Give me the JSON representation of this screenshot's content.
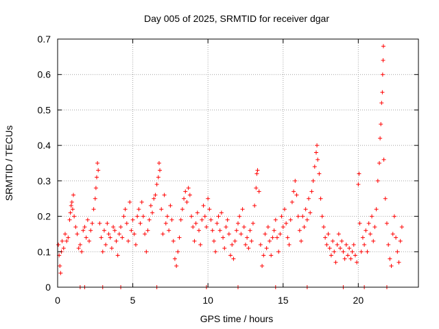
{
  "chart_data": {
    "type": "scatter",
    "title": "Day 005 of 2025, SRMTID for receiver dgar",
    "xlabel": "GPS time / hours",
    "ylabel": "SRMTID / TECUs",
    "xlim": [
      0,
      24
    ],
    "ylim": [
      0,
      0.7
    ],
    "xticks": [
      0,
      5,
      10,
      15,
      20
    ],
    "yticks": [
      0,
      0.1,
      0.2,
      0.3,
      0.4,
      0.5,
      0.6,
      0.7
    ],
    "xtick_labels": [
      "0",
      "5",
      "10",
      "15",
      "20"
    ],
    "ytick_labels": [
      "0",
      "0.1",
      "0.2",
      "0.3",
      "0.4",
      "0.5",
      "0.6",
      "0.7"
    ],
    "grid": true,
    "marker": "+",
    "color": "#ff0000",
    "series": [
      {
        "name": "SRMTID",
        "points": [
          [
            0.05,
            0.12
          ],
          [
            0.1,
            0.09
          ],
          [
            0.15,
            0.06
          ],
          [
            0.2,
            0.04
          ],
          [
            0.25,
            0.1
          ],
          [
            0.3,
            0.13
          ],
          [
            0.4,
            0.11
          ],
          [
            0.5,
            0.15
          ],
          [
            0.6,
            0.13
          ],
          [
            0.7,
            0.14
          ],
          [
            0.8,
            0.19
          ],
          [
            0.85,
            0.21
          ],
          [
            0.9,
            0.23
          ],
          [
            0.95,
            0.24
          ],
          [
            1.0,
            0.22
          ],
          [
            1.05,
            0.26
          ],
          [
            1.1,
            0.2
          ],
          [
            1.2,
            0.17
          ],
          [
            1.3,
            0.15
          ],
          [
            1.4,
            0.11
          ],
          [
            1.5,
            0.12
          ],
          [
            1.6,
            0.1
          ],
          [
            1.7,
            0.16
          ],
          [
            1.8,
            0.17
          ],
          [
            1.9,
            0.14
          ],
          [
            2.0,
            0.19
          ],
          [
            2.1,
            0.13
          ],
          [
            2.2,
            0.16
          ],
          [
            2.3,
            0.18
          ],
          [
            2.4,
            0.22
          ],
          [
            2.5,
            0.25
          ],
          [
            2.55,
            0.28
          ],
          [
            2.6,
            0.31
          ],
          [
            2.65,
            0.35
          ],
          [
            2.7,
            0.33
          ],
          [
            2.8,
            0.18
          ],
          [
            2.9,
            0.14
          ],
          [
            3.0,
            0.1
          ],
          [
            3.1,
            0.16
          ],
          [
            3.2,
            0.12
          ],
          [
            3.3,
            0.18
          ],
          [
            3.4,
            0.15
          ],
          [
            3.5,
            0.14
          ],
          [
            3.6,
            0.11
          ],
          [
            3.7,
            0.17
          ],
          [
            3.8,
            0.16
          ],
          [
            3.9,
            0.13
          ],
          [
            4.0,
            0.09
          ],
          [
            4.1,
            0.15
          ],
          [
            4.2,
            0.17
          ],
          [
            4.3,
            0.14
          ],
          [
            4.4,
            0.2
          ],
          [
            4.5,
            0.22
          ],
          [
            4.6,
            0.18
          ],
          [
            4.7,
            0.13
          ],
          [
            4.8,
            0.24
          ],
          [
            4.9,
            0.16
          ],
          [
            5.0,
            0.19
          ],
          [
            5.1,
            0.15
          ],
          [
            5.2,
            0.12
          ],
          [
            5.3,
            0.2
          ],
          [
            5.4,
            0.22
          ],
          [
            5.5,
            0.18
          ],
          [
            5.6,
            0.24
          ],
          [
            5.7,
            0.2
          ],
          [
            5.8,
            0.15
          ],
          [
            5.9,
            0.1
          ],
          [
            6.0,
            0.16
          ],
          [
            6.1,
            0.19
          ],
          [
            6.2,
            0.23
          ],
          [
            6.3,
            0.21
          ],
          [
            6.4,
            0.25
          ],
          [
            6.5,
            0.26
          ],
          [
            6.6,
            0.29
          ],
          [
            6.7,
            0.31
          ],
          [
            6.75,
            0.35
          ],
          [
            6.8,
            0.33
          ],
          [
            6.9,
            0.22
          ],
          [
            7.0,
            0.15
          ],
          [
            7.1,
            0.26
          ],
          [
            7.2,
            0.18
          ],
          [
            7.3,
            0.2
          ],
          [
            7.4,
            0.16
          ],
          [
            7.5,
            0.23
          ],
          [
            7.6,
            0.19
          ],
          [
            7.7,
            0.13
          ],
          [
            7.8,
            0.08
          ],
          [
            7.9,
            0.06
          ],
          [
            8.0,
            0.1
          ],
          [
            8.1,
            0.14
          ],
          [
            8.2,
            0.19
          ],
          [
            8.3,
            0.22
          ],
          [
            8.4,
            0.25
          ],
          [
            8.5,
            0.27
          ],
          [
            8.6,
            0.24
          ],
          [
            8.7,
            0.28
          ],
          [
            8.8,
            0.26
          ],
          [
            8.9,
            0.2
          ],
          [
            9.0,
            0.17
          ],
          [
            9.1,
            0.13
          ],
          [
            9.2,
            0.18
          ],
          [
            9.3,
            0.21
          ],
          [
            9.4,
            0.16
          ],
          [
            9.5,
            0.12
          ],
          [
            9.6,
            0.19
          ],
          [
            9.7,
            0.23
          ],
          [
            9.8,
            0.2
          ],
          [
            9.9,
            0.17
          ],
          [
            10.0,
            0.25
          ],
          [
            10.1,
            0.22
          ],
          [
            10.2,
            0.19
          ],
          [
            10.3,
            0.16
          ],
          [
            10.4,
            0.13
          ],
          [
            10.5,
            0.1
          ],
          [
            10.6,
            0.18
          ],
          [
            10.7,
            0.2
          ],
          [
            10.8,
            0.16
          ],
          [
            10.9,
            0.21
          ],
          [
            11.0,
            0.14
          ],
          [
            11.1,
            0.11
          ],
          [
            11.2,
            0.17
          ],
          [
            11.3,
            0.19
          ],
          [
            11.4,
            0.15
          ],
          [
            11.5,
            0.09
          ],
          [
            11.6,
            0.12
          ],
          [
            11.7,
            0.08
          ],
          [
            11.8,
            0.13
          ],
          [
            11.9,
            0.16
          ],
          [
            12.0,
            0.18
          ],
          [
            12.1,
            0.2
          ],
          [
            12.2,
            0.15
          ],
          [
            12.3,
            0.22
          ],
          [
            12.4,
            0.17
          ],
          [
            12.5,
            0.12
          ],
          [
            12.6,
            0.14
          ],
          [
            12.7,
            0.11
          ],
          [
            12.8,
            0.16
          ],
          [
            12.9,
            0.13
          ],
          [
            13.0,
            0.18
          ],
          [
            13.1,
            0.23
          ],
          [
            13.2,
            0.28
          ],
          [
            13.25,
            0.32
          ],
          [
            13.3,
            0.33
          ],
          [
            13.4,
            0.27
          ],
          [
            13.5,
            0.12
          ],
          [
            13.6,
            0.06
          ],
          [
            13.7,
            0.09
          ],
          [
            13.8,
            0.15
          ],
          [
            13.9,
            0.11
          ],
          [
            14.0,
            0.17
          ],
          [
            14.1,
            0.13
          ],
          [
            14.2,
            0.09
          ],
          [
            14.3,
            0.14
          ],
          [
            14.4,
            0.16
          ],
          [
            14.5,
            0.19
          ],
          [
            14.6,
            0.14
          ],
          [
            14.7,
            0.1
          ],
          [
            14.8,
            0.15
          ],
          [
            14.9,
            0.2
          ],
          [
            15.0,
            0.17
          ],
          [
            15.1,
            0.22
          ],
          [
            15.2,
            0.18
          ],
          [
            15.3,
            0.14
          ],
          [
            15.4,
            0.12
          ],
          [
            15.5,
            0.19
          ],
          [
            15.6,
            0.24
          ],
          [
            15.7,
            0.27
          ],
          [
            15.8,
            0.3
          ],
          [
            15.9,
            0.26
          ],
          [
            16.0,
            0.2
          ],
          [
            16.1,
            0.16
          ],
          [
            16.2,
            0.13
          ],
          [
            16.3,
            0.2
          ],
          [
            16.4,
            0.17
          ],
          [
            16.5,
            0.22
          ],
          [
            16.6,
            0.19
          ],
          [
            16.7,
            0.25
          ],
          [
            16.8,
            0.21
          ],
          [
            16.9,
            0.27
          ],
          [
            17.0,
            0.3
          ],
          [
            17.1,
            0.34
          ],
          [
            17.2,
            0.38
          ],
          [
            17.25,
            0.4
          ],
          [
            17.3,
            0.36
          ],
          [
            17.4,
            0.32
          ],
          [
            17.5,
            0.25
          ],
          [
            17.6,
            0.2
          ],
          [
            17.7,
            0.17
          ],
          [
            17.8,
            0.14
          ],
          [
            17.9,
            0.12
          ],
          [
            18.0,
            0.15
          ],
          [
            18.1,
            0.11
          ],
          [
            18.2,
            0.09
          ],
          [
            18.3,
            0.13
          ],
          [
            18.4,
            0.1
          ],
          [
            18.5,
            0.07
          ],
          [
            18.6,
            0.12
          ],
          [
            18.7,
            0.15
          ],
          [
            18.8,
            0.11
          ],
          [
            18.9,
            0.13
          ],
          [
            19.0,
            0.1
          ],
          [
            19.1,
            0.08
          ],
          [
            19.2,
            0.12
          ],
          [
            19.3,
            0.09
          ],
          [
            19.4,
            0.11
          ],
          [
            19.5,
            0.08
          ],
          [
            19.6,
            0.1
          ],
          [
            19.7,
            0.12
          ],
          [
            19.8,
            0.09
          ],
          [
            19.9,
            0.07
          ],
          [
            20.0,
            0.29
          ],
          [
            20.05,
            0.32
          ],
          [
            20.1,
            0.18
          ],
          [
            20.2,
            0.1
          ],
          [
            20.3,
            0.14
          ],
          [
            20.4,
            0.12
          ],
          [
            20.5,
            0.16
          ],
          [
            20.6,
            0.1
          ],
          [
            20.7,
            0.18
          ],
          [
            20.8,
            0.15
          ],
          [
            20.9,
            0.2
          ],
          [
            21.0,
            0.13
          ],
          [
            21.1,
            0.17
          ],
          [
            21.2,
            0.22
          ],
          [
            21.3,
            0.3
          ],
          [
            21.4,
            0.35
          ],
          [
            21.45,
            0.42
          ],
          [
            21.5,
            0.46
          ],
          [
            21.55,
            0.52
          ],
          [
            21.6,
            0.55
          ],
          [
            21.62,
            0.6
          ],
          [
            21.65,
            0.64
          ],
          [
            21.67,
            0.68
          ],
          [
            21.7,
            0.36
          ],
          [
            21.8,
            0.25
          ],
          [
            21.9,
            0.18
          ],
          [
            22.0,
            0.12
          ],
          [
            22.1,
            0.08
          ],
          [
            22.2,
            0.06
          ],
          [
            22.3,
            0.15
          ],
          [
            22.4,
            0.2
          ],
          [
            22.5,
            0.14
          ],
          [
            22.6,
            0.1
          ],
          [
            22.7,
            0.07
          ],
          [
            22.8,
            0.13
          ],
          [
            22.9,
            0.17
          ],
          [
            1.5,
            0
          ],
          [
            1.8,
            0
          ],
          [
            3.0,
            0
          ],
          [
            4.2,
            0
          ],
          [
            6.6,
            0
          ],
          [
            9.9,
            0
          ],
          [
            12.0,
            0
          ],
          [
            14.5,
            0
          ],
          [
            16.6,
            0
          ],
          [
            19.0,
            0
          ],
          [
            20.4,
            0
          ],
          [
            21.9,
            0
          ]
        ]
      }
    ]
  }
}
